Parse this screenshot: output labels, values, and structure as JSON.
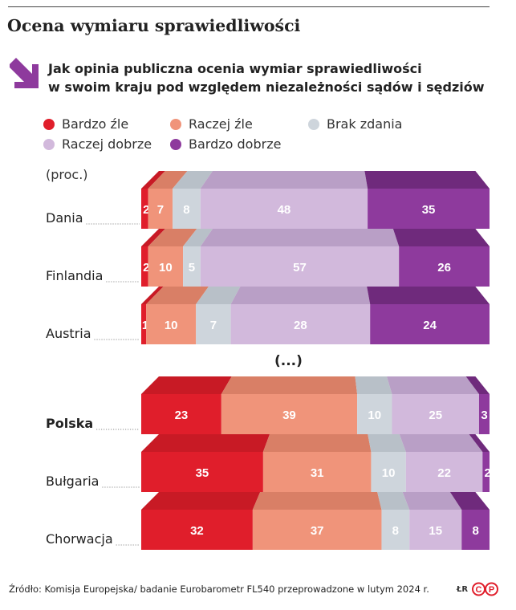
{
  "header": {
    "title": "Ocena wymiaru sprawiedliwości",
    "subtitle_line1": "Jak opinia publiczna ocenia wymiar sprawiedliwości",
    "subtitle_line2": "w swoim kraju pod względem niezależności sądów i sędziów",
    "icon": "arrow-down-right-icon"
  },
  "legend": {
    "items": [
      {
        "label": "Bardzo źle",
        "color": "#e01e2b"
      },
      {
        "label": "Raczej źle",
        "color": "#f0947a"
      },
      {
        "label": "Brak zdania",
        "color": "#ced5dc"
      },
      {
        "label": "Raczej dobrze",
        "color": "#d2b9dc"
      },
      {
        "label": "Bardzo dobrze",
        "color": "#8e3a9d"
      }
    ]
  },
  "unit_label": "(proc.)",
  "ellipsis": "(...)",
  "chart_data": {
    "type": "bar",
    "orientation": "horizontal-stacked-100",
    "categories": [
      "Dania",
      "Finlandia",
      "Austria",
      "Polska",
      "Bułgaria",
      "Chorwacja"
    ],
    "highlight_category": "Polska",
    "gap_after": "Austria",
    "series": [
      {
        "name": "Bardzo źle",
        "values": [
          2,
          2,
          1,
          23,
          35,
          32
        ],
        "color": "#e01e2b",
        "top_color": "#c81a25"
      },
      {
        "name": "Raczej źle",
        "values": [
          7,
          10,
          10,
          39,
          31,
          37
        ],
        "color": "#f0947a",
        "top_color": "#d97f66"
      },
      {
        "name": "Brak zdania",
        "values": [
          8,
          5,
          7,
          10,
          10,
          8
        ],
        "color": "#ced5dc",
        "top_color": "#b8c0c8"
      },
      {
        "name": "Raczej dobrze",
        "values": [
          48,
          57,
          28,
          25,
          22,
          15
        ],
        "color": "#d2b9dc",
        "top_color": "#b99fc6"
      },
      {
        "name": "Bardzo dobrze",
        "values": [
          35,
          26,
          24,
          3,
          2,
          8
        ],
        "color": "#8e3a9d",
        "top_color": "#6f2a7c"
      }
    ]
  },
  "footer": {
    "source": "Źródło: Komisja Europejska/ badanie Eurobarometr FL540 przeprowadzone w lutym 2024 r.",
    "credit": "ŁR",
    "logo": "cp-logo-icon",
    "logo_text": "CP"
  }
}
